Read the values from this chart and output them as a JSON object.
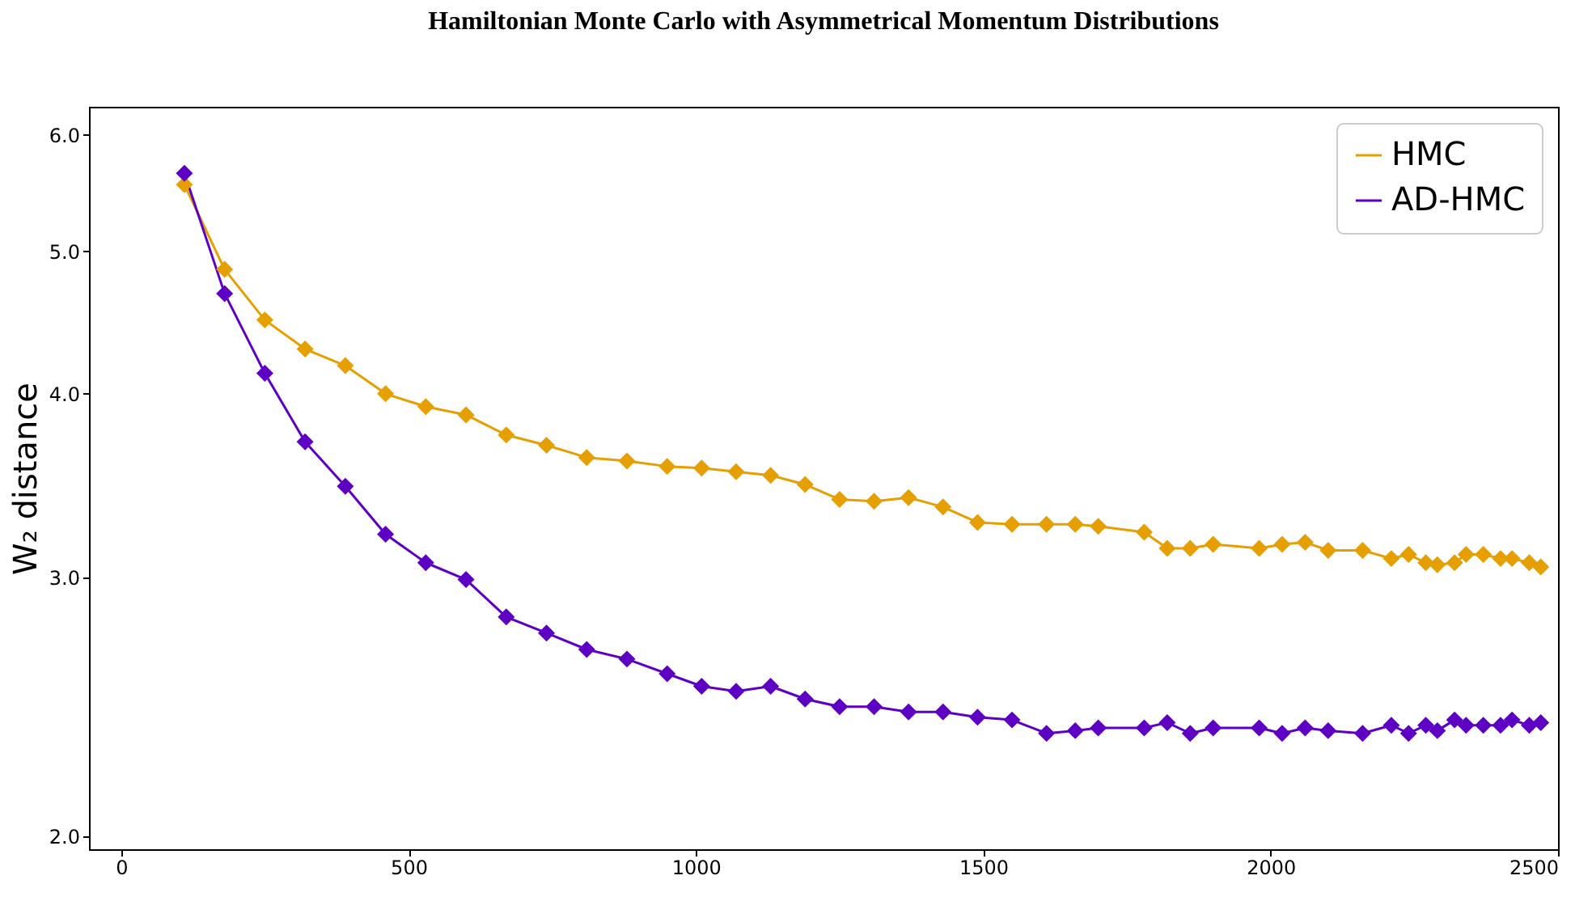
{
  "chart_data": {
    "type": "line",
    "title": "Hamiltonian Monte Carlo with Asymmetrical Momentum Distributions",
    "ylabel": "W₂ distance",
    "x": [
      110,
      180,
      250,
      320,
      390,
      460,
      530,
      600,
      670,
      740,
      810,
      880,
      950,
      1010,
      1070,
      1130,
      1190,
      1250,
      1310,
      1370,
      1430,
      1490,
      1550,
      1610,
      1660,
      1700,
      1780,
      1820,
      1860,
      1900,
      1980,
      2020,
      2060,
      2100,
      2160,
      2210,
      2240,
      2270,
      2290,
      2320,
      2340,
      2370,
      2400,
      2420,
      2450,
      2470
    ],
    "series": [
      {
        "name": "HMC",
        "color": "#e69f00",
        "values": [
          5.55,
          4.86,
          4.49,
          4.29,
          4.18,
          4.0,
          3.92,
          3.87,
          3.75,
          3.69,
          3.62,
          3.6,
          3.57,
          3.56,
          3.54,
          3.52,
          3.47,
          3.39,
          3.38,
          3.4,
          3.35,
          3.27,
          3.26,
          3.26,
          3.26,
          3.25,
          3.22,
          3.14,
          3.14,
          3.16,
          3.14,
          3.16,
          3.17,
          3.13,
          3.13,
          3.09,
          3.11,
          3.07,
          3.06,
          3.07,
          3.11,
          3.11,
          3.09,
          3.09,
          3.07,
          3.05
        ]
      },
      {
        "name": "AD-HMC",
        "color": "#5e00c4",
        "values": [
          5.65,
          4.68,
          4.13,
          3.71,
          3.46,
          3.21,
          3.07,
          2.99,
          2.82,
          2.75,
          2.68,
          2.64,
          2.58,
          2.53,
          2.51,
          2.53,
          2.48,
          2.45,
          2.45,
          2.43,
          2.43,
          2.41,
          2.4,
          2.35,
          2.36,
          2.37,
          2.37,
          2.39,
          2.35,
          2.37,
          2.37,
          2.35,
          2.37,
          2.36,
          2.35,
          2.38,
          2.35,
          2.38,
          2.36,
          2.4,
          2.38,
          2.38,
          2.38,
          2.4,
          2.38,
          2.39
        ]
      }
    ],
    "xlim": [
      -56,
      2500
    ],
    "xticks": [
      0,
      500,
      1000,
      1500,
      2000,
      2500
    ],
    "ylim": [
      1.96,
      6.27
    ],
    "yticks": [
      {
        "value": 2,
        "label": "2.0"
      },
      {
        "value": 3,
        "label": "3.0"
      },
      {
        "value": 4,
        "label": "4.0"
      },
      {
        "value": 5,
        "label": "5.0"
      },
      {
        "value": 6,
        "label": "6.0"
      }
    ],
    "log": "y",
    "grid": false,
    "legend": "top right",
    "marker": "diamond",
    "line_style": "solid"
  }
}
